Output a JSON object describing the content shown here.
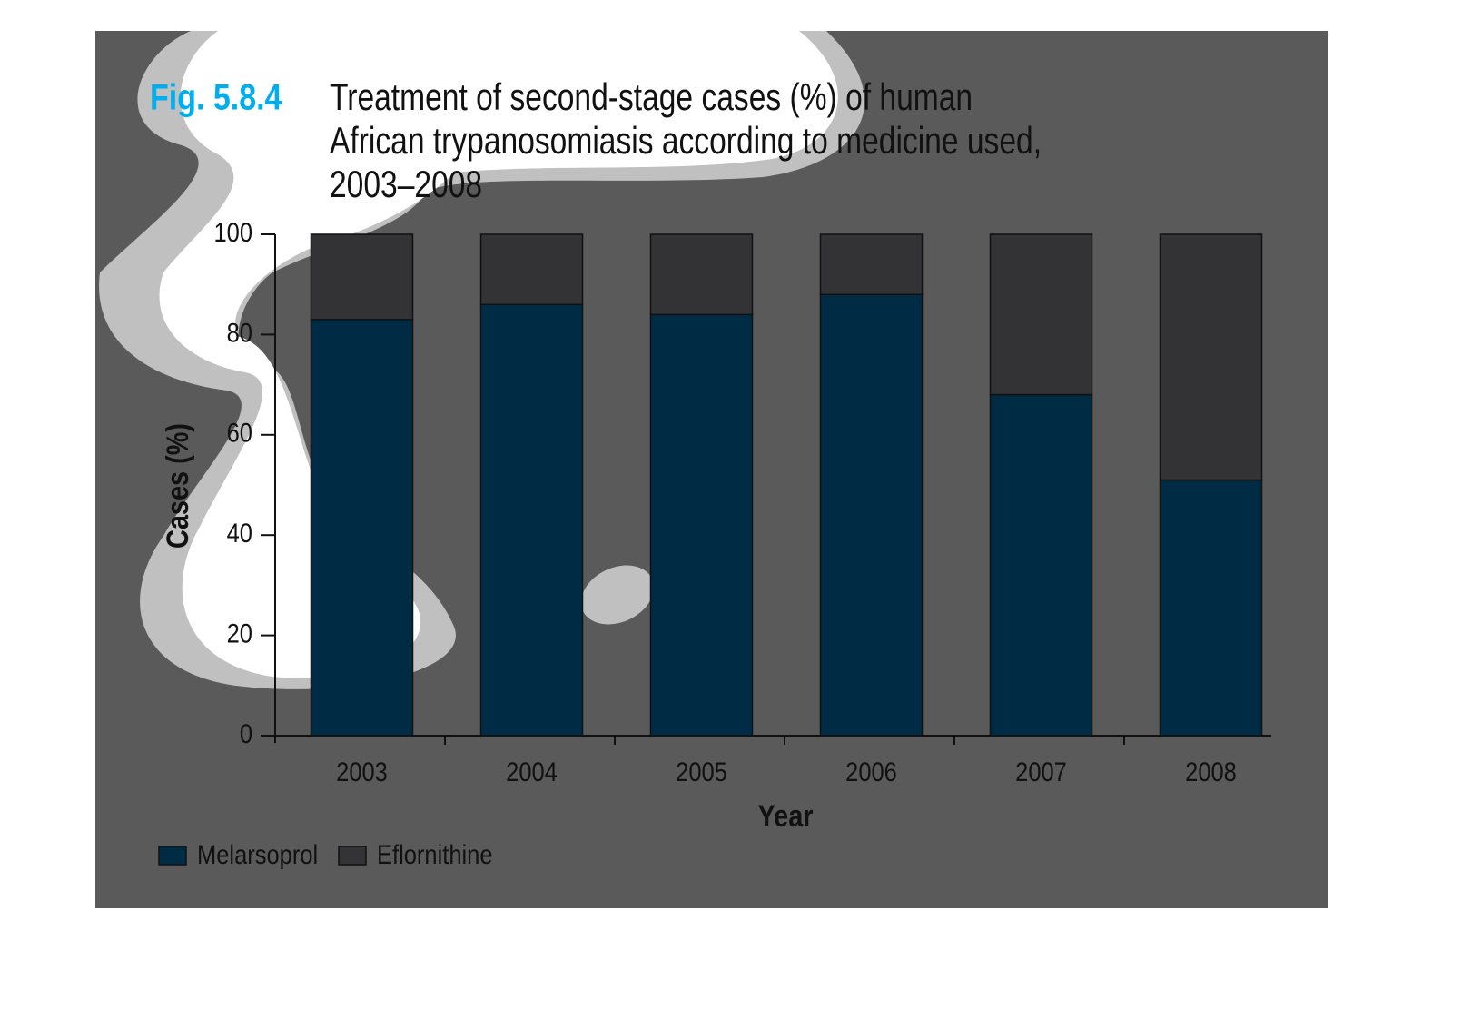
{
  "chart_data": {
    "type": "stacked_bar",
    "figure_label": "Fig. 5.8.4",
    "title": [
      "Treatment of second-stage cases (%) of human",
      "African trypanosomiasis according to medicine used,",
      "2003–2008"
    ],
    "x_label": "Year",
    "y_label": "Cases (%)",
    "categories": [
      "2003",
      "2004",
      "2005",
      "2006",
      "2007",
      "2008"
    ],
    "series": [
      {
        "name": "Melarsoprol",
        "color": "#002b45",
        "values": [
          83,
          86,
          84,
          88,
          68,
          51
        ]
      },
      {
        "name": "Eflornithine",
        "color": "#333335",
        "values": [
          17,
          14,
          16,
          12,
          32,
          49
        ]
      }
    ],
    "ylim": [
      0,
      100
    ],
    "yticks": [
      0,
      20,
      40,
      60,
      80,
      100
    ],
    "grid": false
  }
}
